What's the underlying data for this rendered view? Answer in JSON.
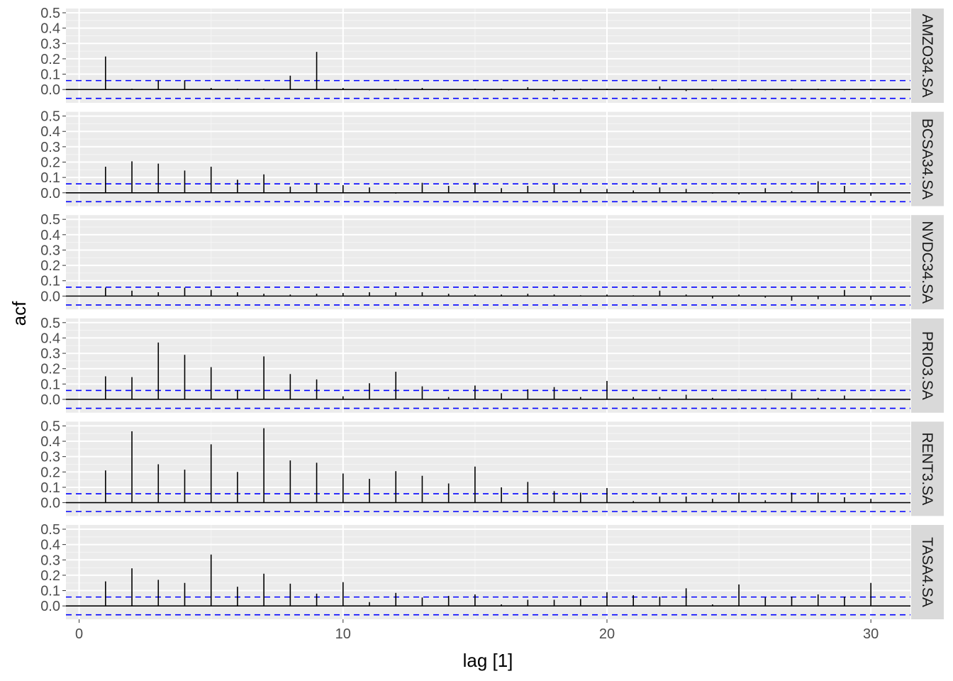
{
  "chart_data": {
    "type": "bar",
    "xlabel": "lag [1]",
    "ylabel": "acf",
    "xlim": [
      0,
      31
    ],
    "ylim": [
      -0.05,
      0.5
    ],
    "x_ticks": [
      0,
      10,
      20,
      30
    ],
    "x_tick_labels": [
      "0",
      "10",
      "20",
      "30"
    ],
    "y_ticks": [
      0.0,
      0.1,
      0.2,
      0.3,
      0.4,
      0.5
    ],
    "y_tick_labels": [
      "0.0",
      "0.1",
      "0.2",
      "0.3",
      "0.4",
      "0.5"
    ],
    "confidence_bound": 0.058,
    "grid": true,
    "lags": [
      1,
      2,
      3,
      4,
      5,
      6,
      7,
      8,
      9,
      10,
      11,
      12,
      13,
      14,
      15,
      16,
      17,
      18,
      19,
      20,
      21,
      22,
      23,
      24,
      25,
      26,
      27,
      28,
      29,
      30
    ],
    "series": [
      {
        "name": "AMZO34.SA",
        "values": [
          0.215,
          0.005,
          0.06,
          0.06,
          0.01,
          0.005,
          0.005,
          0.09,
          0.245,
          0.01,
          -0.005,
          0.005,
          0.01,
          -0.005,
          0.005,
          0.005,
          0.015,
          -0.01,
          0.005,
          0.005,
          -0.005,
          0.02,
          -0.01,
          0.005,
          0.005,
          -0.005,
          0.005,
          0.005,
          -0.005,
          0.005
        ]
      },
      {
        "name": "BCSA34.SA",
        "values": [
          0.17,
          0.205,
          0.19,
          0.145,
          0.17,
          0.085,
          0.12,
          0.04,
          0.06,
          0.05,
          0.035,
          -0.005,
          0.065,
          0.045,
          0.065,
          0.03,
          0.045,
          0.055,
          0.025,
          0.025,
          0.015,
          0.035,
          0.025,
          -0.005,
          -0.01,
          0.03,
          0.01,
          0.075,
          0.045,
          -0.02
        ]
      },
      {
        "name": "NVDC34.SA",
        "values": [
          0.055,
          0.035,
          0.025,
          0.055,
          0.04,
          0.025,
          0.015,
          0.01,
          0.015,
          0.02,
          0.025,
          0.025,
          0.025,
          0.015,
          0.01,
          0.01,
          0.015,
          0.01,
          0.005,
          0.01,
          0.005,
          0.035,
          0.01,
          -0.015,
          0.01,
          -0.01,
          -0.03,
          -0.02,
          0.04,
          -0.025
        ]
      },
      {
        "name": "PRIO3.SA",
        "values": [
          0.15,
          0.145,
          0.37,
          0.29,
          0.21,
          0.06,
          0.28,
          0.165,
          0.13,
          0.02,
          0.105,
          0.18,
          0.085,
          0.015,
          0.09,
          0.04,
          0.065,
          0.08,
          0.015,
          0.12,
          0.015,
          0.015,
          0.03,
          0.01,
          0.005,
          0.005,
          0.045,
          0.01,
          0.025,
          0.005
        ]
      },
      {
        "name": "RENT3.SA",
        "values": [
          0.21,
          0.465,
          0.25,
          0.215,
          0.38,
          0.2,
          0.485,
          0.275,
          0.26,
          0.19,
          0.155,
          0.205,
          0.175,
          0.125,
          0.235,
          0.1,
          0.135,
          0.075,
          0.065,
          0.095,
          0.01,
          0.04,
          0.04,
          0.025,
          0.065,
          0.015,
          0.065,
          0.065,
          0.035,
          0.025
        ]
      },
      {
        "name": "TASA4.SA",
        "values": [
          0.16,
          0.245,
          0.17,
          0.15,
          0.335,
          0.125,
          0.21,
          0.145,
          0.08,
          0.155,
          0.025,
          0.085,
          0.055,
          0.065,
          0.075,
          0.01,
          0.04,
          0.04,
          0.045,
          0.09,
          0.07,
          0.06,
          0.115,
          0.01,
          0.14,
          0.055,
          0.06,
          0.075,
          0.06,
          0.15
        ]
      }
    ]
  },
  "colors": {
    "panel_bg": "#ebebeb",
    "strip_bg": "#d9d9d9",
    "grid_major": "#ffffff",
    "grid_minor": "#f5f5f5",
    "spike": "#000000",
    "bound": "#0000ff"
  }
}
